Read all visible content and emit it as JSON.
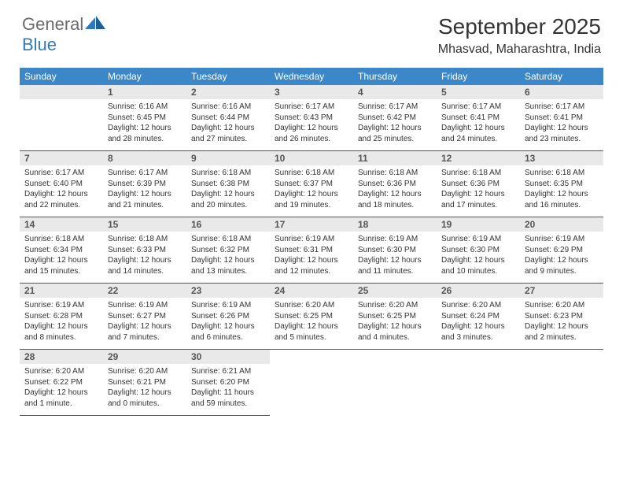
{
  "brand": {
    "general": "General",
    "blue": "Blue"
  },
  "title": "September 2025",
  "location": "Mhasvad, Maharashtra, India",
  "colors": {
    "header_bg": "#3c87c7",
    "header_text": "#ffffff",
    "daynum_bg": "#e9e9e9",
    "daynum_text": "#555555",
    "rule": "#2a5f8c",
    "body_text": "#333333",
    "logo_gray": "#6b6b6b",
    "logo_blue": "#2f7abf"
  },
  "dow": [
    "Sunday",
    "Monday",
    "Tuesday",
    "Wednesday",
    "Thursday",
    "Friday",
    "Saturday"
  ],
  "weeks": [
    [
      null,
      {
        "n": "1",
        "sr": "Sunrise: 6:16 AM",
        "ss": "Sunset: 6:45 PM",
        "dl1": "Daylight: 12 hours",
        "dl2": "and 28 minutes."
      },
      {
        "n": "2",
        "sr": "Sunrise: 6:16 AM",
        "ss": "Sunset: 6:44 PM",
        "dl1": "Daylight: 12 hours",
        "dl2": "and 27 minutes."
      },
      {
        "n": "3",
        "sr": "Sunrise: 6:17 AM",
        "ss": "Sunset: 6:43 PM",
        "dl1": "Daylight: 12 hours",
        "dl2": "and 26 minutes."
      },
      {
        "n": "4",
        "sr": "Sunrise: 6:17 AM",
        "ss": "Sunset: 6:42 PM",
        "dl1": "Daylight: 12 hours",
        "dl2": "and 25 minutes."
      },
      {
        "n": "5",
        "sr": "Sunrise: 6:17 AM",
        "ss": "Sunset: 6:41 PM",
        "dl1": "Daylight: 12 hours",
        "dl2": "and 24 minutes."
      },
      {
        "n": "6",
        "sr": "Sunrise: 6:17 AM",
        "ss": "Sunset: 6:41 PM",
        "dl1": "Daylight: 12 hours",
        "dl2": "and 23 minutes."
      }
    ],
    [
      {
        "n": "7",
        "sr": "Sunrise: 6:17 AM",
        "ss": "Sunset: 6:40 PM",
        "dl1": "Daylight: 12 hours",
        "dl2": "and 22 minutes."
      },
      {
        "n": "8",
        "sr": "Sunrise: 6:17 AM",
        "ss": "Sunset: 6:39 PM",
        "dl1": "Daylight: 12 hours",
        "dl2": "and 21 minutes."
      },
      {
        "n": "9",
        "sr": "Sunrise: 6:18 AM",
        "ss": "Sunset: 6:38 PM",
        "dl1": "Daylight: 12 hours",
        "dl2": "and 20 minutes."
      },
      {
        "n": "10",
        "sr": "Sunrise: 6:18 AM",
        "ss": "Sunset: 6:37 PM",
        "dl1": "Daylight: 12 hours",
        "dl2": "and 19 minutes."
      },
      {
        "n": "11",
        "sr": "Sunrise: 6:18 AM",
        "ss": "Sunset: 6:36 PM",
        "dl1": "Daylight: 12 hours",
        "dl2": "and 18 minutes."
      },
      {
        "n": "12",
        "sr": "Sunrise: 6:18 AM",
        "ss": "Sunset: 6:36 PM",
        "dl1": "Daylight: 12 hours",
        "dl2": "and 17 minutes."
      },
      {
        "n": "13",
        "sr": "Sunrise: 6:18 AM",
        "ss": "Sunset: 6:35 PM",
        "dl1": "Daylight: 12 hours",
        "dl2": "and 16 minutes."
      }
    ],
    [
      {
        "n": "14",
        "sr": "Sunrise: 6:18 AM",
        "ss": "Sunset: 6:34 PM",
        "dl1": "Daylight: 12 hours",
        "dl2": "and 15 minutes."
      },
      {
        "n": "15",
        "sr": "Sunrise: 6:18 AM",
        "ss": "Sunset: 6:33 PM",
        "dl1": "Daylight: 12 hours",
        "dl2": "and 14 minutes."
      },
      {
        "n": "16",
        "sr": "Sunrise: 6:18 AM",
        "ss": "Sunset: 6:32 PM",
        "dl1": "Daylight: 12 hours",
        "dl2": "and 13 minutes."
      },
      {
        "n": "17",
        "sr": "Sunrise: 6:19 AM",
        "ss": "Sunset: 6:31 PM",
        "dl1": "Daylight: 12 hours",
        "dl2": "and 12 minutes."
      },
      {
        "n": "18",
        "sr": "Sunrise: 6:19 AM",
        "ss": "Sunset: 6:30 PM",
        "dl1": "Daylight: 12 hours",
        "dl2": "and 11 minutes."
      },
      {
        "n": "19",
        "sr": "Sunrise: 6:19 AM",
        "ss": "Sunset: 6:30 PM",
        "dl1": "Daylight: 12 hours",
        "dl2": "and 10 minutes."
      },
      {
        "n": "20",
        "sr": "Sunrise: 6:19 AM",
        "ss": "Sunset: 6:29 PM",
        "dl1": "Daylight: 12 hours",
        "dl2": "and 9 minutes."
      }
    ],
    [
      {
        "n": "21",
        "sr": "Sunrise: 6:19 AM",
        "ss": "Sunset: 6:28 PM",
        "dl1": "Daylight: 12 hours",
        "dl2": "and 8 minutes."
      },
      {
        "n": "22",
        "sr": "Sunrise: 6:19 AM",
        "ss": "Sunset: 6:27 PM",
        "dl1": "Daylight: 12 hours",
        "dl2": "and 7 minutes."
      },
      {
        "n": "23",
        "sr": "Sunrise: 6:19 AM",
        "ss": "Sunset: 6:26 PM",
        "dl1": "Daylight: 12 hours",
        "dl2": "and 6 minutes."
      },
      {
        "n": "24",
        "sr": "Sunrise: 6:20 AM",
        "ss": "Sunset: 6:25 PM",
        "dl1": "Daylight: 12 hours",
        "dl2": "and 5 minutes."
      },
      {
        "n": "25",
        "sr": "Sunrise: 6:20 AM",
        "ss": "Sunset: 6:25 PM",
        "dl1": "Daylight: 12 hours",
        "dl2": "and 4 minutes."
      },
      {
        "n": "26",
        "sr": "Sunrise: 6:20 AM",
        "ss": "Sunset: 6:24 PM",
        "dl1": "Daylight: 12 hours",
        "dl2": "and 3 minutes."
      },
      {
        "n": "27",
        "sr": "Sunrise: 6:20 AM",
        "ss": "Sunset: 6:23 PM",
        "dl1": "Daylight: 12 hours",
        "dl2": "and 2 minutes."
      }
    ],
    [
      {
        "n": "28",
        "sr": "Sunrise: 6:20 AM",
        "ss": "Sunset: 6:22 PM",
        "dl1": "Daylight: 12 hours",
        "dl2": "and 1 minute."
      },
      {
        "n": "29",
        "sr": "Sunrise: 6:20 AM",
        "ss": "Sunset: 6:21 PM",
        "dl1": "Daylight: 12 hours",
        "dl2": "and 0 minutes."
      },
      {
        "n": "30",
        "sr": "Sunrise: 6:21 AM",
        "ss": "Sunset: 6:20 PM",
        "dl1": "Daylight: 11 hours",
        "dl2": "and 59 minutes."
      },
      null,
      null,
      null,
      null
    ]
  ]
}
